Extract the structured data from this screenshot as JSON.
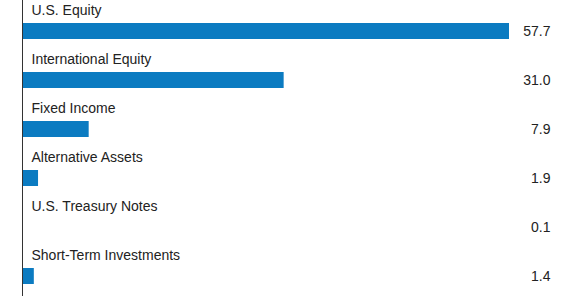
{
  "chart_data": {
    "type": "bar",
    "orientation": "horizontal",
    "categories": [
      "U.S. Equity",
      "International Equity",
      "Fixed Income",
      "Alternative Assets",
      "U.S. Treasury Notes",
      "Short-Term Investments"
    ],
    "values": [
      57.7,
      31.0,
      7.9,
      1.9,
      0.1,
      1.4
    ],
    "value_labels": [
      "57.7",
      "31.0",
      "7.9",
      "1.9",
      "0.1",
      "1.4"
    ],
    "color": "#0b7bc1",
    "data_labels": true,
    "tick_labels": false,
    "grid": false
  }
}
